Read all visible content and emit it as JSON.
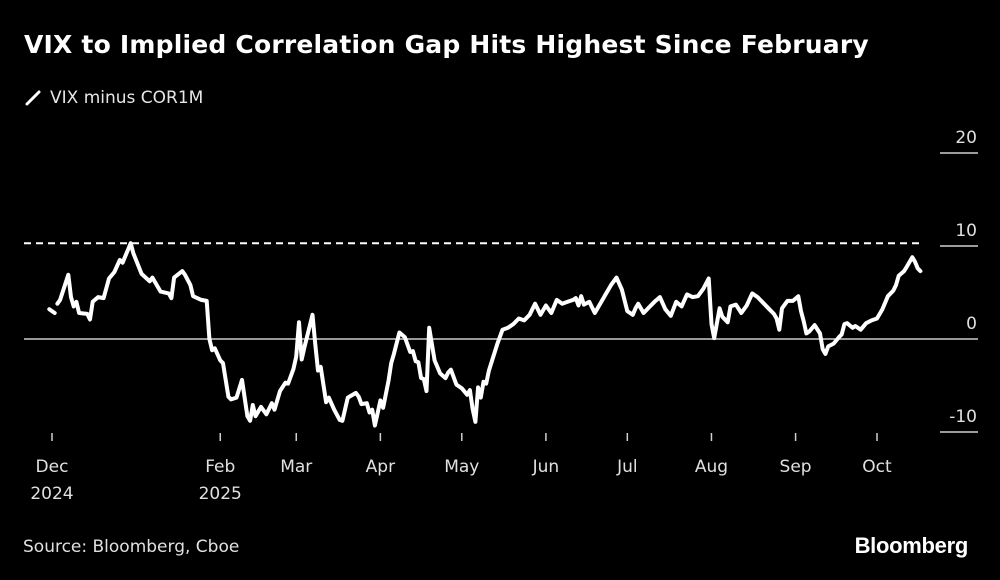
{
  "header": {
    "title": "VIX to Implied Correlation Gap Hits Highest Since February"
  },
  "legend": {
    "items": [
      {
        "label": "VIX minus COR1M",
        "icon": "line-swatch-icon",
        "color": "#ffffff"
      }
    ]
  },
  "footer": {
    "source": "Source: Bloomberg, Cboe",
    "brand": "Bloomberg"
  },
  "chart_data": {
    "type": "line",
    "title": "VIX to Implied Correlation Gap Hits Highest Since February",
    "xlabel": "",
    "ylabel": "",
    "ylim": [
      -10,
      20
    ],
    "y_ticks": [
      {
        "value": 20,
        "label": "20"
      },
      {
        "value": 10,
        "label": "10"
      },
      {
        "value": 0,
        "label": "0"
      },
      {
        "value": -10,
        "label": "-10"
      }
    ],
    "x_ticks": [
      {
        "day": 0,
        "label": "Dec",
        "sublabel": "2024"
      },
      {
        "day": 62,
        "label": "Feb",
        "sublabel": "2025"
      },
      {
        "day": 90,
        "label": "Mar",
        "sublabel": ""
      },
      {
        "day": 121,
        "label": "Apr",
        "sublabel": ""
      },
      {
        "day": 151,
        "label": "May",
        "sublabel": ""
      },
      {
        "day": 182,
        "label": "Jun",
        "sublabel": ""
      },
      {
        "day": 212,
        "label": "Jul",
        "sublabel": ""
      },
      {
        "day": 243,
        "label": "Aug",
        "sublabel": ""
      },
      {
        "day": 274,
        "label": "Sep",
        "sublabel": ""
      },
      {
        "day": 304,
        "label": "Oct",
        "sublabel": ""
      }
    ],
    "xlim_days": [
      -10,
      330
    ],
    "x_origin": "2024-12-01",
    "reference_lines": [
      {
        "value": 0,
        "style": "solid",
        "color": "#cccccc"
      },
      {
        "value": 10.3,
        "style": "dashed",
        "color": "#ffffff",
        "label": "Highest Since February"
      }
    ],
    "grid": false,
    "legend_position": "top-left",
    "series": [
      {
        "name": "VIX minus COR1M",
        "color": "#ffffff",
        "segments": [
          [
            [
              -1,
              3.2
            ],
            [
              1,
              2.8
            ]
          ],
          [
            [
              2,
              3.8
            ],
            [
              3,
              4.2
            ],
            [
              6,
              6.9
            ],
            [
              7,
              4.5
            ],
            [
              8,
              3.5
            ],
            [
              9,
              4.0
            ],
            [
              10,
              2.8
            ],
            [
              13,
              2.7
            ],
            [
              14,
              2.1
            ],
            [
              15,
              4.0
            ],
            [
              17,
              4.5
            ],
            [
              19,
              4.4
            ],
            [
              21,
              6.5
            ],
            [
              23,
              7.2
            ],
            [
              25,
              8.5
            ],
            [
              26,
              8.2
            ],
            [
              29,
              10.3
            ],
            [
              30,
              9.2
            ],
            [
              33,
              7.0
            ],
            [
              36,
              6.2
            ],
            [
              37,
              6.6
            ],
            [
              40,
              5.1
            ],
            [
              43,
              4.9
            ],
            [
              44,
              4.4
            ],
            [
              45,
              6.6
            ],
            [
              48,
              7.3
            ],
            [
              49,
              6.9
            ],
            [
              51,
              5.8
            ],
            [
              52,
              4.6
            ],
            [
              55,
              4.2
            ],
            [
              57,
              4.1
            ],
            [
              58,
              0.0
            ],
            [
              59,
              -1.2
            ],
            [
              60,
              -1.0
            ],
            [
              62,
              -2.3
            ],
            [
              63,
              -2.6
            ],
            [
              65,
              -6.2
            ],
            [
              66,
              -6.5
            ],
            [
              68,
              -6.3
            ],
            [
              70,
              -4.4
            ],
            [
              72,
              -8.3
            ],
            [
              73,
              -8.8
            ],
            [
              74,
              -7.1
            ],
            [
              75,
              -8.3
            ],
            [
              77,
              -7.3
            ],
            [
              79,
              -8.1
            ],
            [
              81,
              -6.9
            ],
            [
              82,
              -7.6
            ],
            [
              84,
              -5.6
            ],
            [
              86,
              -4.7
            ],
            [
              87,
              -4.8
            ],
            [
              89,
              -3.2
            ],
            [
              90,
              -1.9
            ],
            [
              91,
              1.8
            ],
            [
              92,
              -2.2
            ],
            [
              93,
              -0.9
            ],
            [
              96,
              2.6
            ],
            [
              97,
              -0.5
            ],
            [
              98,
              -3.4
            ],
            [
              99,
              -3.0
            ],
            [
              101,
              -6.8
            ],
            [
              102,
              -6.3
            ],
            [
              104,
              -7.6
            ],
            [
              106,
              -8.7
            ],
            [
              107,
              -8.8
            ],
            [
              109,
              -6.3
            ],
            [
              112,
              -5.8
            ],
            [
              113,
              -6.2
            ],
            [
              114,
              -7.0
            ],
            [
              116,
              -6.9
            ],
            [
              117,
              -7.9
            ],
            [
              118,
              -7.6
            ],
            [
              119,
              -9.3
            ],
            [
              121,
              -6.6
            ],
            [
              122,
              -7.4
            ],
            [
              124,
              -4.5
            ],
            [
              125,
              -2.6
            ],
            [
              126,
              -1.6
            ],
            [
              128,
              0.7
            ],
            [
              130,
              0.2
            ],
            [
              132,
              -1.4
            ],
            [
              133,
              -1.3
            ],
            [
              134,
              -2.4
            ],
            [
              135,
              -2.5
            ],
            [
              136,
              -4.2
            ],
            [
              137,
              -4.3
            ],
            [
              138,
              -5.6
            ],
            [
              139,
              1.2
            ],
            [
              141,
              -2.3
            ],
            [
              143,
              -3.7
            ],
            [
              145,
              -4.2
            ],
            [
              146,
              -3.6
            ],
            [
              147,
              -3.3
            ],
            [
              149,
              -4.9
            ],
            [
              151,
              -5.3
            ],
            [
              153,
              -6.0
            ],
            [
              154,
              -5.5
            ],
            [
              155,
              -7.5
            ],
            [
              156,
              -8.9
            ],
            [
              157,
              -5.2
            ],
            [
              158,
              -6.3
            ],
            [
              159,
              -4.6
            ],
            [
              160,
              -4.8
            ],
            [
              161,
              -3.4
            ],
            [
              164,
              -0.6
            ],
            [
              166,
              1.0
            ],
            [
              168,
              1.2
            ],
            [
              170,
              1.6
            ],
            [
              172,
              2.2
            ],
            [
              174,
              2.0
            ],
            [
              176,
              2.6
            ],
            [
              178,
              3.8
            ],
            [
              180,
              2.6
            ],
            [
              182,
              3.6
            ],
            [
              184,
              2.8
            ],
            [
              186,
              4.2
            ],
            [
              188,
              3.8
            ],
            [
              190,
              4.0
            ],
            [
              192,
              4.2
            ],
            [
              193,
              4.4
            ],
            [
              194,
              3.6
            ],
            [
              195,
              4.6
            ],
            [
              196,
              3.7
            ],
            [
              198,
              4.0
            ],
            [
              200,
              2.8
            ],
            [
              202,
              3.8
            ],
            [
              204,
              4.8
            ],
            [
              206,
              5.8
            ],
            [
              208,
              6.6
            ],
            [
              210,
              5.3
            ],
            [
              212,
              3.0
            ],
            [
              214,
              2.6
            ],
            [
              215,
              3.3
            ],
            [
              216,
              3.8
            ],
            [
              218,
              2.8
            ],
            [
              220,
              3.4
            ],
            [
              222,
              4.0
            ],
            [
              224,
              4.5
            ],
            [
              226,
              3.2
            ],
            [
              228,
              2.5
            ],
            [
              230,
              4.0
            ],
            [
              232,
              3.5
            ],
            [
              234,
              4.8
            ],
            [
              236,
              4.5
            ],
            [
              238,
              4.6
            ],
            [
              240,
              5.4
            ],
            [
              242,
              6.5
            ],
            [
              243,
              1.6
            ],
            [
              244,
              0.1
            ],
            [
              246,
              3.3
            ],
            [
              247,
              2.4
            ],
            [
              249,
              1.8
            ],
            [
              250,
              3.5
            ],
            [
              252,
              3.7
            ],
            [
              254,
              2.8
            ],
            [
              256,
              3.6
            ],
            [
              258,
              4.9
            ],
            [
              260,
              4.5
            ],
            [
              262,
              3.9
            ],
            [
              264,
              3.3
            ],
            [
              266,
              2.7
            ],
            [
              267,
              2.2
            ],
            [
              268,
              1.0
            ],
            [
              269,
              3.3
            ],
            [
              271,
              4.1
            ],
            [
              273,
              4.1
            ],
            [
              275,
              4.6
            ],
            [
              276,
              3.0
            ],
            [
              277,
              1.9
            ],
            [
              278,
              0.6
            ],
            [
              279,
              0.8
            ],
            [
              281,
              1.5
            ],
            [
              283,
              0.6
            ],
            [
              284,
              -1.1
            ],
            [
              285,
              -1.6
            ],
            [
              286,
              -0.8
            ],
            [
              288,
              -0.5
            ],
            [
              290,
              0.2
            ],
            [
              291,
              0.5
            ],
            [
              292,
              1.6
            ],
            [
              293,
              1.7
            ],
            [
              295,
              1.2
            ],
            [
              296,
              1.4
            ],
            [
              298,
              1.0
            ],
            [
              300,
              1.7
            ],
            [
              302,
              2.0
            ],
            [
              304,
              2.2
            ],
            [
              306,
              3.2
            ],
            [
              308,
              4.6
            ],
            [
              310,
              5.2
            ],
            [
              311,
              5.8
            ],
            [
              312,
              6.8
            ],
            [
              314,
              7.3
            ],
            [
              315,
              7.8
            ],
            [
              317,
              8.8
            ],
            [
              318,
              8.3
            ],
            [
              319,
              7.6
            ],
            [
              320,
              7.3
            ]
          ]
        ]
      }
    ]
  }
}
